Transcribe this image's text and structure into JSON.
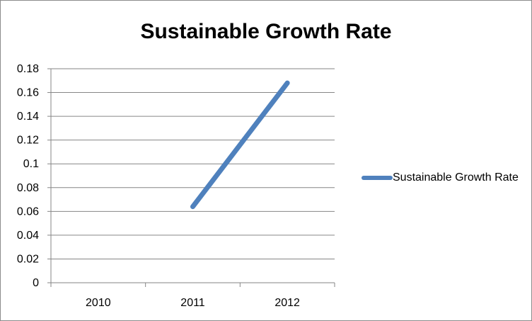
{
  "chart_data": {
    "type": "line",
    "title": "Sustainable Growth Rate",
    "categories": [
      "2010",
      "2011",
      "2012"
    ],
    "series": [
      {
        "name": "Sustainable Growth Rate",
        "values": [
          null,
          0.064,
          0.168
        ]
      }
    ],
    "ylim": [
      0,
      0.18
    ],
    "yticks": [
      "0",
      "0.02",
      "0.04",
      "0.06",
      "0.08",
      "0.1",
      "0.12",
      "0.14",
      "0.16",
      "0.18"
    ],
    "ytick_values": [
      0,
      0.02,
      0.04,
      0.06,
      0.08,
      0.1,
      0.12,
      0.14,
      0.16,
      0.18
    ],
    "grid": true,
    "legend": "right",
    "colors": {
      "series": "#4f81bd",
      "grid": "#868686"
    }
  }
}
